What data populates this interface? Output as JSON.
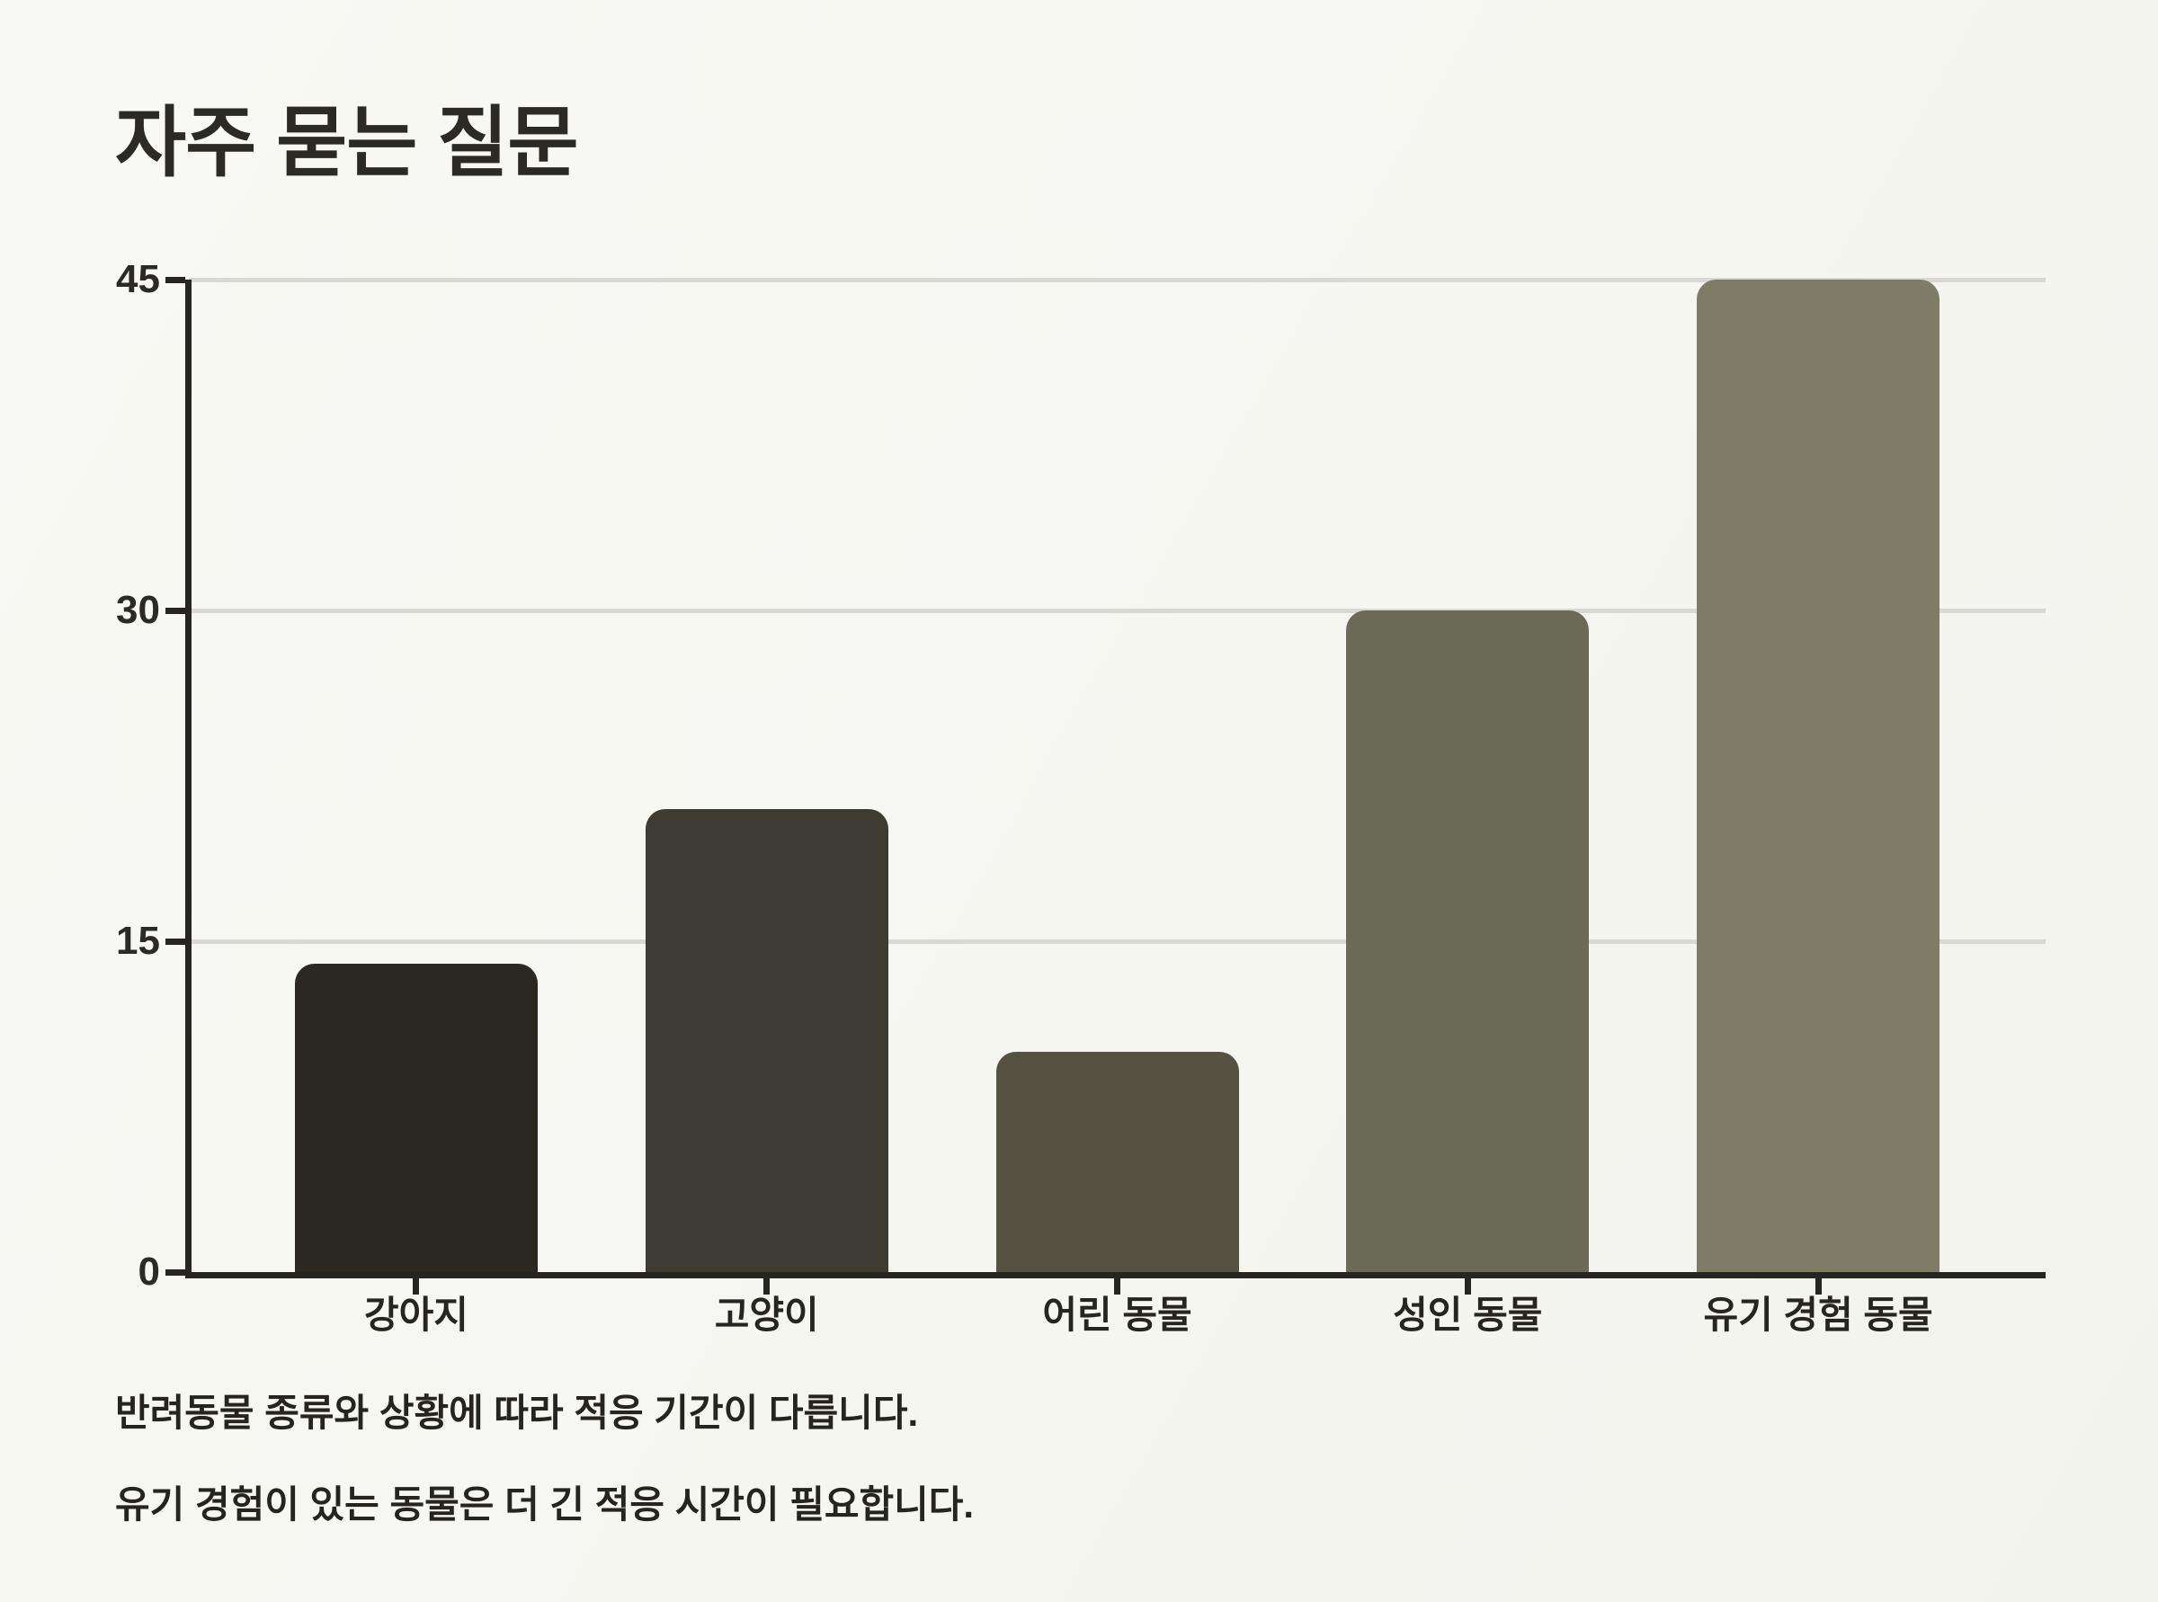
{
  "page": {
    "background_color": "#f6f6f1"
  },
  "header": {
    "title": "자주 묻는 질문"
  },
  "chart_data": {
    "type": "bar",
    "title": "자주 묻는 질문",
    "categories": [
      "강아지",
      "고양이",
      "어린 동물",
      "성인 동물",
      "유기 경험 동물"
    ],
    "values": [
      14,
      21,
      10,
      30,
      45
    ],
    "xlabel": "",
    "ylabel": "",
    "ylim": [
      0,
      45
    ],
    "yticks": [
      0,
      15,
      30,
      45
    ],
    "bar_colors": [
      "#2a2821",
      "#3e3c32",
      "#555244",
      "#6b6a57",
      "#7e7c66"
    ],
    "axis_color": "#262521",
    "gridline_color": "#d9d8d3",
    "grid": "horizontal-on",
    "legend_position": "none"
  },
  "notes": {
    "line1": "반려동물 종류와 상황에 따라 적응 기간이 다릅니다.",
    "line2": "유기 경험이 있는 동물은 더 긴 적응 시간이 필요합니다."
  }
}
